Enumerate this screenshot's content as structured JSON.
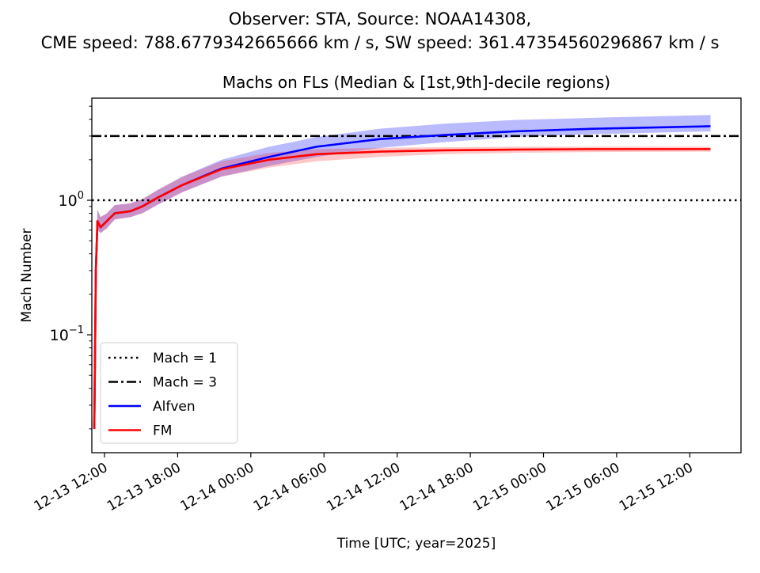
{
  "chart_data": {
    "type": "line",
    "suptitle_line1": "Observer: STA, Source: NOAA14308,",
    "suptitle_line2": "CME speed: 788.6779342665666 km / s, SW speed: 361.47354560296867 km / s",
    "title": "Machs on FLs (Median & [1st,9th]-decile regions)",
    "xlabel": "Time [UTC; year=2025]",
    "ylabel": "Mach Number",
    "yscale": "log",
    "ylim": [
      0.0133,
      5.74
    ],
    "x_units": "hours since 2025-12-13 12:00",
    "xlim": [
      -1.04,
      52.2
    ],
    "x_ticks": [
      0,
      6,
      12,
      18,
      24,
      30,
      36,
      42,
      48
    ],
    "x_tick_labels": [
      "12-13 12:00",
      "12-13 18:00",
      "12-14 00:00",
      "12-14 06:00",
      "12-14 12:00",
      "12-14 18:00",
      "12-15 00:00",
      "12-15 06:00",
      "12-15 12:00"
    ],
    "y_ticks": [
      0.1,
      1
    ],
    "y_tick_labels": [
      {
        "base": "10",
        "exp": "−1"
      },
      {
        "base": "10",
        "exp": "0"
      }
    ],
    "reference_lines": [
      {
        "label": "Mach = 1",
        "value": 1,
        "style": "dotted",
        "color": "#000000"
      },
      {
        "label": "Mach = 3",
        "value": 3,
        "style": "dashdot",
        "color": "#000000"
      }
    ],
    "x": [
      -0.84,
      -0.71,
      -0.58,
      -0.32,
      0.19,
      0.84,
      2.14,
      3.1,
      4.4,
      6.4,
      9.6,
      13.5,
      17.4,
      22.6,
      27.8,
      33.6,
      40.1,
      49.7
    ],
    "series": [
      {
        "name": "Alfven",
        "color": "#0000ff",
        "band_color": "#0000ff",
        "median": [
          0.02,
          0.3,
          0.7,
          0.63,
          0.7,
          0.8,
          0.83,
          0.9,
          1.05,
          1.3,
          1.72,
          2.1,
          2.5,
          2.85,
          3.05,
          3.25,
          3.4,
          3.55
        ],
        "lower": [
          0.02,
          0.25,
          0.6,
          0.57,
          0.62,
          0.72,
          0.75,
          0.8,
          0.93,
          1.15,
          1.5,
          1.8,
          2.1,
          2.45,
          2.7,
          2.95,
          3.1,
          3.25
        ],
        "upper": [
          0.02,
          0.35,
          0.85,
          0.75,
          0.8,
          0.92,
          0.95,
          1.02,
          1.2,
          1.5,
          2.0,
          2.5,
          2.95,
          3.4,
          3.7,
          3.95,
          4.1,
          4.3
        ]
      },
      {
        "name": "FM",
        "color": "#ff0000",
        "band_color": "#ff0000",
        "median": [
          0.02,
          0.3,
          0.7,
          0.63,
          0.7,
          0.8,
          0.83,
          0.9,
          1.05,
          1.3,
          1.7,
          2.0,
          2.2,
          2.3,
          2.35,
          2.38,
          2.4,
          2.4
        ],
        "lower": [
          0.02,
          0.25,
          0.6,
          0.57,
          0.62,
          0.72,
          0.75,
          0.8,
          0.93,
          1.15,
          1.5,
          1.75,
          1.95,
          2.1,
          2.2,
          2.25,
          2.28,
          2.3
        ],
        "upper": [
          0.02,
          0.35,
          0.85,
          0.75,
          0.8,
          0.92,
          0.95,
          1.02,
          1.2,
          1.5,
          1.95,
          2.25,
          2.4,
          2.45,
          2.48,
          2.5,
          2.5,
          2.5
        ]
      }
    ],
    "legend": {
      "placement": "lower-left",
      "entries": [
        "Mach = 1",
        "Mach = 3",
        "Alfven",
        "FM"
      ]
    },
    "grid": false
  }
}
